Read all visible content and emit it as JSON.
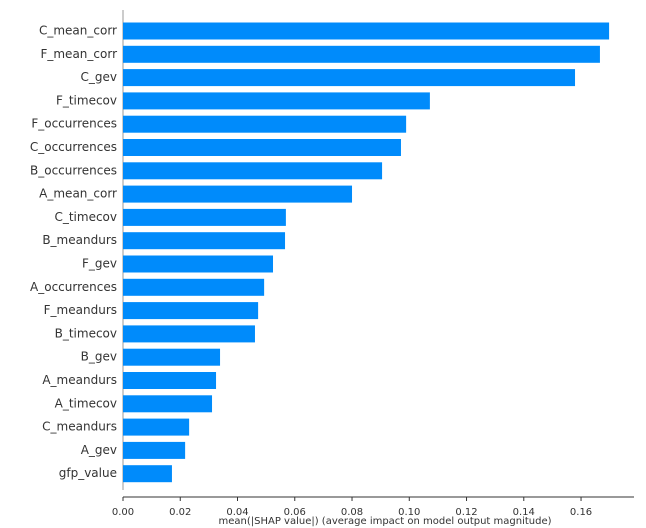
{
  "chart_data": {
    "type": "barh",
    "x_label": "mean(|SHAP value|) (average impact on model output magnitude)",
    "categories": [
      "C_mean_corr",
      "F_mean_corr",
      "C_gev",
      "F_timecov",
      "F_occurrences",
      "C_occurrences",
      "B_occurrences",
      "A_mean_corr",
      "C_timecov",
      "B_meandurs",
      "F_gev",
      "A_occurrences",
      "F_meandurs",
      "B_timecov",
      "B_gev",
      "A_meandurs",
      "A_timecov",
      "C_meandurs",
      "A_gev",
      "gfp_value"
    ],
    "values": [
      0.1698,
      0.1666,
      0.1579,
      0.1072,
      0.0989,
      0.0971,
      0.0905,
      0.08,
      0.0569,
      0.0566,
      0.0524,
      0.0493,
      0.0472,
      0.0461,
      0.0339,
      0.0325,
      0.0311,
      0.0231,
      0.0217,
      0.0171
    ],
    "color": "#008bfb",
    "xlim": [
      0,
      0.1785
    ],
    "xticks": [
      {
        "value": 0,
        "label": "0.00"
      },
      {
        "value": 0.02,
        "label": "0.02"
      },
      {
        "value": 0.04,
        "label": "0.04"
      },
      {
        "value": 0.06,
        "label": "0.06"
      },
      {
        "value": 0.08,
        "label": "0.08"
      },
      {
        "value": 0.1,
        "label": "0.10"
      },
      {
        "value": 0.12,
        "label": "0.12"
      },
      {
        "value": 0.14,
        "label": "0.14"
      },
      {
        "value": 0.16,
        "label": "0.16"
      }
    ]
  }
}
